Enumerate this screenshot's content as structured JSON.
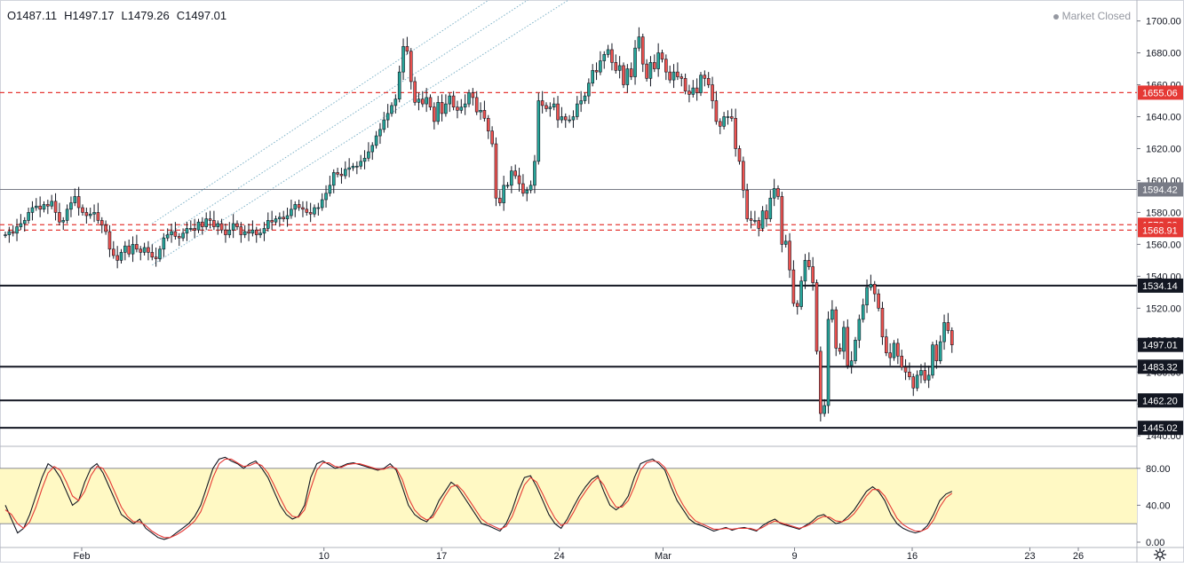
{
  "ohlc_legend": {
    "open": "O1487.11",
    "high": "H1497.17",
    "low": "L1479.26",
    "close": "C1497.01"
  },
  "market_status": "Market Closed",
  "colors": {
    "up": "#26a69a",
    "down": "#ef5350",
    "candle_up_fill": "#26a69a",
    "candle_down_fill": "#ef5350",
    "stoch_k": "#131722",
    "stoch_d": "#e53935",
    "stoch_band": "#fff9c4",
    "channel": "#7fb3c8",
    "red_level": "#e53935",
    "black_level": "#131722",
    "grey_level": "#787b86"
  },
  "chart_data": [
    {
      "type": "candlestick",
      "title": "",
      "ylim": [
        1434,
        1712
      ],
      "y_ticks": [
        "1700.00",
        "1680.00",
        "1660.00",
        "1640.00",
        "1620.00",
        "1600.00",
        "1580.00",
        "1560.00",
        "1540.00",
        "1520.00",
        "1500.00",
        "1480.00",
        "1460.00",
        "1440.00"
      ],
      "x_ticks": [
        {
          "label": "Feb",
          "index": 16
        },
        {
          "label": "10",
          "index": 51
        },
        {
          "label": "17",
          "index": 68
        },
        {
          "label": "24",
          "index": 85
        },
        {
          "label": "Mar",
          "index": 100
        },
        {
          "label": "9",
          "index": 119
        },
        {
          "label": "16",
          "index": 136
        },
        {
          "label": "23",
          "index": 153
        },
        {
          "label": "26",
          "index": 160
        }
      ],
      "horizontal_levels": [
        {
          "price": 1655.06,
          "label": "1655.06",
          "style": "red-dashed"
        },
        {
          "price": 1572.29,
          "label": "1572.29",
          "style": "red-dashed"
        },
        {
          "price": 1568.91,
          "label": "1568.91",
          "style": "red-dashed"
        },
        {
          "price": 1594.42,
          "label": "1594.42",
          "style": "grey-solid"
        },
        {
          "price": 1534.14,
          "label": "1534.14",
          "style": "black-solid"
        },
        {
          "price": 1483.32,
          "label": "1483.32",
          "style": "black-solid"
        },
        {
          "price": 1462.2,
          "label": "1462.20",
          "style": "black-solid"
        },
        {
          "price": 1445.02,
          "label": "1445.02",
          "style": "black-solid"
        }
      ],
      "last_price": {
        "price": 1497.01,
        "label": "1497.01"
      },
      "channel": {
        "start_index": 38,
        "end_index": 158,
        "lines": [
          {
            "start": 1547,
            "end": 1732
          },
          {
            "start": 1560,
            "end": 1749
          },
          {
            "start": 1573,
            "end": 1766
          }
        ]
      },
      "close": [
        1566,
        1568,
        1567,
        1571,
        1573,
        1575,
        1580,
        1583,
        1584,
        1582,
        1585,
        1584,
        1587,
        1580,
        1574,
        1575,
        1582,
        1586,
        1590,
        1583,
        1580,
        1578,
        1579,
        1580,
        1575,
        1572,
        1568,
        1557,
        1553,
        1550,
        1555,
        1559,
        1554,
        1560,
        1557,
        1555,
        1558,
        1555,
        1552,
        1551,
        1557,
        1564,
        1566,
        1568,
        1565,
        1564,
        1567,
        1570,
        1570,
        1569,
        1574,
        1571,
        1576,
        1575,
        1571,
        1573,
        1569,
        1566,
        1569,
        1573,
        1571,
        1566,
        1568,
        1567,
        1569,
        1566,
        1567,
        1570,
        1575,
        1574,
        1576,
        1577,
        1576,
        1578,
        1582,
        1585,
        1583,
        1582,
        1580,
        1579,
        1583,
        1583,
        1588,
        1592,
        1597,
        1605,
        1604,
        1603,
        1607,
        1608,
        1609,
        1609,
        1612,
        1614,
        1618,
        1622,
        1628,
        1632,
        1638,
        1642,
        1647,
        1651,
        1668,
        1684,
        1681,
        1662,
        1649,
        1651,
        1648,
        1652,
        1646,
        1637,
        1649,
        1642,
        1648,
        1653,
        1646,
        1644,
        1646,
        1648,
        1655,
        1652,
        1643,
        1644,
        1639,
        1631,
        1623,
        1589,
        1586,
        1597,
        1597,
        1606,
        1603,
        1598,
        1592,
        1594,
        1597,
        1612,
        1650,
        1647,
        1645,
        1646,
        1648,
        1638,
        1640,
        1638,
        1638,
        1640,
        1648,
        1650,
        1653,
        1661,
        1669,
        1668,
        1675,
        1679,
        1682,
        1674,
        1669,
        1672,
        1660,
        1670,
        1665,
        1683,
        1690,
        1673,
        1664,
        1674,
        1670,
        1680,
        1676,
        1668,
        1663,
        1668,
        1665,
        1664,
        1656,
        1654,
        1658,
        1655,
        1666,
        1664,
        1660,
        1650,
        1637,
        1634,
        1640,
        1640,
        1639,
        1620,
        1612,
        1594,
        1576,
        1575,
        1575,
        1570,
        1581,
        1576,
        1589,
        1595,
        1590,
        1560,
        1562,
        1544,
        1523,
        1521,
        1537,
        1550,
        1546,
        1536,
        1493,
        1454,
        1459,
        1513,
        1519,
        1495,
        1493,
        1508,
        1484,
        1487,
        1500,
        1513,
        1522,
        1533,
        1535,
        1529,
        1520,
        1502,
        1492,
        1489,
        1498,
        1490,
        1483,
        1480,
        1477,
        1470,
        1478,
        1481,
        1475,
        1478,
        1497,
        1487,
        1499,
        1511,
        1506,
        1497
      ],
      "open": [
        1566,
        1566,
        1568,
        1567,
        1571,
        1573,
        1575,
        1580,
        1583,
        1584,
        1582,
        1585,
        1584,
        1587,
        1580,
        1574,
        1575,
        1582,
        1586,
        1590,
        1583,
        1580,
        1578,
        1579,
        1580,
        1575,
        1572,
        1568,
        1557,
        1553,
        1550,
        1555,
        1559,
        1554,
        1560,
        1557,
        1555,
        1558,
        1555,
        1552,
        1551,
        1557,
        1564,
        1566,
        1568,
        1565,
        1564,
        1567,
        1570,
        1570,
        1569,
        1574,
        1571,
        1576,
        1575,
        1571,
        1573,
        1569,
        1566,
        1569,
        1573,
        1571,
        1566,
        1568,
        1567,
        1569,
        1566,
        1567,
        1570,
        1575,
        1574,
        1576,
        1577,
        1576,
        1578,
        1582,
        1585,
        1583,
        1582,
        1580,
        1579,
        1583,
        1583,
        1588,
        1592,
        1597,
        1605,
        1604,
        1603,
        1607,
        1608,
        1609,
        1609,
        1612,
        1614,
        1618,
        1622,
        1628,
        1632,
        1638,
        1642,
        1647,
        1651,
        1668,
        1684,
        1681,
        1662,
        1649,
        1651,
        1648,
        1652,
        1646,
        1637,
        1649,
        1642,
        1648,
        1653,
        1646,
        1644,
        1646,
        1648,
        1655,
        1652,
        1643,
        1644,
        1639,
        1631,
        1623,
        1589,
        1586,
        1597,
        1597,
        1606,
        1603,
        1598,
        1592,
        1594,
        1597,
        1612,
        1650,
        1647,
        1645,
        1646,
        1648,
        1638,
        1640,
        1638,
        1638,
        1640,
        1648,
        1650,
        1653,
        1661,
        1669,
        1668,
        1675,
        1679,
        1682,
        1674,
        1669,
        1672,
        1660,
        1670,
        1665,
        1683,
        1690,
        1673,
        1664,
        1674,
        1670,
        1680,
        1676,
        1668,
        1663,
        1668,
        1665,
        1664,
        1656,
        1654,
        1658,
        1655,
        1666,
        1664,
        1660,
        1650,
        1637,
        1634,
        1640,
        1640,
        1639,
        1620,
        1612,
        1594,
        1576,
        1575,
        1575,
        1570,
        1581,
        1576,
        1589,
        1595,
        1590,
        1560,
        1562,
        1544,
        1523,
        1521,
        1537,
        1550,
        1546,
        1536,
        1493,
        1454,
        1459,
        1513,
        1519,
        1495,
        1493,
        1508,
        1484,
        1487,
        1500,
        1513,
        1522,
        1533,
        1535,
        1529,
        1520,
        1502,
        1492,
        1489,
        1498,
        1490,
        1483,
        1480,
        1477,
        1470,
        1478,
        1481,
        1475,
        1478,
        1497,
        1487,
        1499,
        1511,
        1506
      ]
    },
    {
      "type": "line",
      "title": "",
      "ylim": [
        0,
        100
      ],
      "y_ticks": [
        "80.00",
        "40.00",
        "0.00"
      ],
      "band": [
        20,
        80
      ],
      "series": [
        {
          "name": "",
          "role": "k",
          "values": [
            40,
            25,
            10,
            15,
            30,
            50,
            70,
            85,
            80,
            70,
            55,
            40,
            45,
            65,
            80,
            85,
            75,
            60,
            45,
            30,
            25,
            20,
            25,
            15,
            10,
            5,
            3,
            5,
            10,
            15,
            20,
            28,
            40,
            60,
            80,
            90,
            92,
            88,
            85,
            80,
            85,
            88,
            80,
            70,
            55,
            40,
            30,
            25,
            28,
            40,
            70,
            85,
            88,
            84,
            80,
            82,
            85,
            86,
            84,
            82,
            80,
            78,
            80,
            85,
            78,
            60,
            40,
            30,
            25,
            22,
            30,
            45,
            55,
            65,
            60,
            50,
            40,
            30,
            20,
            18,
            15,
            12,
            20,
            35,
            55,
            70,
            72,
            60,
            45,
            30,
            20,
            15,
            25,
            38,
            50,
            60,
            68,
            72,
            55,
            40,
            35,
            40,
            50,
            70,
            85,
            88,
            90,
            85,
            78,
            60,
            45,
            35,
            25,
            20,
            18,
            15,
            12,
            14,
            16,
            13,
            15,
            16,
            14,
            12,
            18,
            22,
            25,
            20,
            18,
            16,
            14,
            18,
            22,
            28,
            30,
            25,
            20,
            22,
            28,
            35,
            45,
            55,
            60,
            55,
            45,
            30,
            20,
            15,
            12,
            10,
            12,
            18,
            30,
            45,
            52,
            55
          ]
        },
        {
          "name": "",
          "role": "d",
          "values": [
            35,
            30,
            20,
            15,
            22,
            38,
            58,
            75,
            82,
            78,
            65,
            50,
            45,
            55,
            72,
            82,
            80,
            68,
            53,
            38,
            28,
            22,
            22,
            18,
            12,
            8,
            5,
            5,
            8,
            12,
            17,
            23,
            33,
            50,
            70,
            85,
            90,
            90,
            86,
            82,
            83,
            86,
            83,
            75,
            62,
            48,
            35,
            28,
            27,
            35,
            58,
            78,
            86,
            86,
            82,
            81,
            84,
            85,
            85,
            83,
            81,
            79,
            79,
            82,
            80,
            68,
            48,
            35,
            28,
            24,
            27,
            38,
            50,
            60,
            62,
            55,
            45,
            35,
            25,
            20,
            17,
            14,
            17,
            28,
            45,
            62,
            70,
            65,
            52,
            38,
            26,
            18,
            21,
            32,
            45,
            55,
            64,
            70,
            62,
            48,
            38,
            38,
            45,
            60,
            78,
            86,
            88,
            87,
            81,
            68,
            52,
            40,
            30,
            23,
            20,
            17,
            14,
            14,
            15,
            14,
            15,
            15,
            15,
            13,
            16,
            20,
            23,
            21,
            19,
            17,
            15,
            17,
            20,
            25,
            28,
            27,
            23,
            22,
            25,
            31,
            40,
            50,
            57,
            57,
            50,
            38,
            26,
            19,
            15,
            12,
            12,
            15,
            24,
            38,
            48,
            53
          ]
        }
      ]
    }
  ]
}
